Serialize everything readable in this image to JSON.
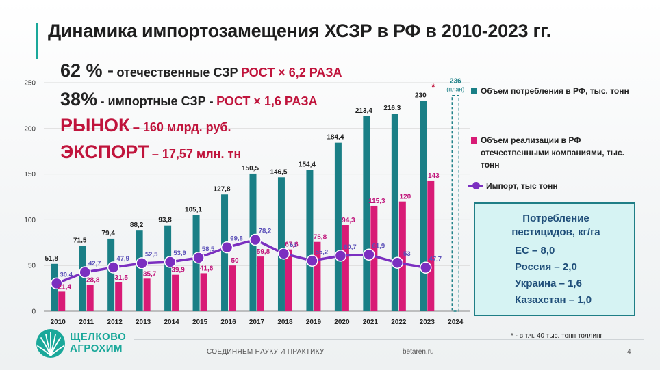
{
  "slide": {
    "title": "Динамика импортозамещения ХСЗР в РФ в 2010-2023 гг.",
    "page_number": "4",
    "footer_slogan": "СОЕДИНЯЕМ НАУКУ И ПРАКТИКУ",
    "footer_site": "betaren.ru",
    "logo_line1": "ЩЕЛКОВО",
    "logo_line2": "АГРОХИМ",
    "footnote": "* - в т.ч. 40 тыс. тонн толлинг"
  },
  "stats": {
    "s1_big": "62 % -",
    "s1_text": "отечественные СЗР",
    "s1_accent": "РОСТ × 6,2 РАЗА",
    "s2_big": "38%",
    "s2_text": "- импортные СЗР -",
    "s2_accent": "РОСТ × 1,6 РАЗА",
    "s3_big": "РЫНОК",
    "s3_text": "– 160 млрд. руб.",
    "s4_big": "ЭКСПОРТ",
    "s4_text": "– 17,57 млн. тн"
  },
  "legend": {
    "consumption": "Объем потребления в РФ, тыс. тонн",
    "domestic": "Объем реализации в РФ отечественными компаниями, тыс. тонн",
    "import": "Импорт, тыс тонн"
  },
  "pesticide_box": {
    "title": "Потребление пестицидов, кг/га",
    "items": [
      "ЕС – 8,0",
      "Россия – 2,0",
      "Украина – 1,6",
      "Казахстан – 1,0"
    ]
  },
  "colors": {
    "consumption": "#1a7f86",
    "domestic": "#d81b76",
    "import": "#7b2fc0"
  },
  "chart_data": {
    "type": "bar",
    "categories": [
      "2010",
      "2011",
      "2012",
      "2013",
      "2014",
      "2015",
      "2016",
      "2017",
      "2018",
      "2019",
      "2020",
      "2021",
      "2022",
      "2023",
      "2024"
    ],
    "ylim": [
      0,
      250
    ],
    "yticks": [
      0,
      50,
      100,
      150,
      200,
      250
    ],
    "series": [
      {
        "name": "Объем потребления в РФ, тыс. тонн",
        "type": "bar",
        "values": [
          51.8,
          71.5,
          79.4,
          88.2,
          93.8,
          105.1,
          127.8,
          150.5,
          146.5,
          154.4,
          184.4,
          213.4,
          216.3,
          230,
          null
        ],
        "labels": [
          "51,8",
          "71,5",
          "79,4",
          "88,2",
          "93,8",
          "105,1",
          "127,8",
          "150,5",
          "146,5",
          "154,4",
          "184,4",
          "213,4",
          "216,3",
          "230",
          ""
        ]
      },
      {
        "name": "Объем реализации в РФ отечественными компаниями, тыс. тонн",
        "type": "bar",
        "values": [
          21.4,
          28.8,
          31.5,
          35.7,
          39.9,
          41.6,
          50,
          59.8,
          67.6,
          75.8,
          94.3,
          115.3,
          120,
          143,
          null
        ],
        "labels": [
          "21,4",
          "28,8",
          "31,5",
          "35,7",
          "39,9",
          "41,6",
          "50",
          "59,8",
          "67,6",
          "75,8",
          "94,3",
          "115,3",
          "120",
          "143",
          ""
        ]
      },
      {
        "name": "Импорт, тыс тонн",
        "type": "line",
        "values": [
          30.4,
          42.7,
          47.9,
          52.5,
          53.9,
          58.5,
          69.8,
          78.2,
          63,
          55.2,
          60.7,
          61.9,
          53,
          47.7,
          null
        ],
        "labels": [
          "30,4",
          "42,7",
          "47,9",
          "52,5",
          "53,9",
          "58,5",
          "69,8",
          "78,2",
          "63",
          "55,2",
          "60,7",
          "61,9",
          "53",
          "47,7",
          ""
        ]
      }
    ],
    "plan_2024": {
      "value": 236,
      "label": "236",
      "note": "(план)"
    },
    "asterisk_2023": "*"
  }
}
